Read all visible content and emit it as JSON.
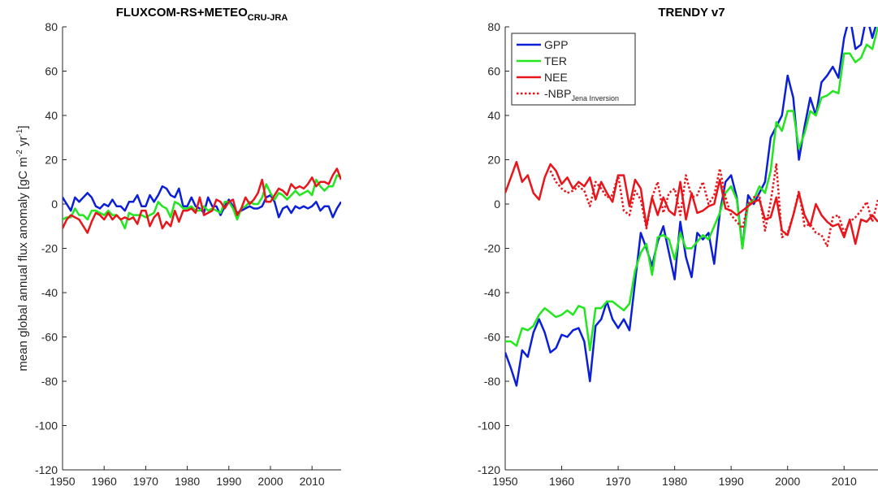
{
  "chart_data": [
    {
      "type": "line",
      "title": "FLUXCOM-RS+METEO",
      "title_subscript": "CRU-JRA",
      "y_label": [
        "mean global annual flux anomaly [gC m",
        "-2",
        " yr",
        "-1",
        "]"
      ],
      "x": [
        1950,
        1951,
        1952,
        1953,
        1954,
        1955,
        1956,
        1957,
        1958,
        1959,
        1960,
        1961,
        1962,
        1963,
        1964,
        1965,
        1966,
        1967,
        1968,
        1969,
        1970,
        1971,
        1972,
        1973,
        1974,
        1975,
        1976,
        1977,
        1978,
        1979,
        1980,
        1981,
        1982,
        1983,
        1984,
        1985,
        1986,
        1987,
        1988,
        1989,
        1990,
        1991,
        1992,
        1993,
        1994,
        1995,
        1996,
        1997,
        1998,
        1999,
        2000,
        2001,
        2002,
        2003,
        2004,
        2005,
        2006,
        2007,
        2008,
        2009,
        2010,
        2011,
        2012,
        2013,
        2014,
        2015,
        2016,
        2017
      ],
      "series": [
        {
          "name": "GPP",
          "color": "#0b1fd8",
          "values": [
            3,
            0,
            -3,
            3,
            1,
            3,
            5,
            3,
            -1,
            -2,
            0,
            -1,
            2,
            -1,
            -1,
            -3,
            1,
            1,
            4,
            -1,
            -1,
            4,
            1,
            4,
            8,
            7,
            4,
            3,
            7,
            -1,
            -1,
            3,
            -1,
            -2,
            -4,
            3,
            -1,
            -1,
            -5,
            -1,
            2,
            -1,
            -4,
            -3,
            -2,
            -1,
            -2,
            -2,
            -1,
            3,
            4,
            1,
            -6,
            -2,
            -1,
            -4,
            -1,
            -2,
            -1,
            -2,
            -1,
            1,
            -3,
            -1,
            -1,
            -6,
            -2,
            1
          ]
        },
        {
          "name": "TER",
          "color": "#22e61e",
          "values": [
            -7,
            -6,
            -6,
            -2,
            -5,
            -5,
            -7,
            -3,
            -3,
            -4,
            -5,
            -3,
            -5,
            -5,
            -7,
            -11,
            -4,
            -5,
            -5,
            -5,
            -6,
            -5,
            -4,
            1,
            -1,
            -2,
            -6,
            1,
            0,
            -2,
            -2,
            -1,
            -3,
            -3,
            -1,
            -3,
            -2,
            -3,
            -4,
            1,
            1,
            -2,
            -7,
            -2,
            -1,
            1,
            0,
            0,
            3,
            9,
            5,
            2,
            5,
            4,
            2,
            4,
            6,
            4,
            5,
            6,
            4,
            11,
            8,
            6,
            8,
            8,
            13,
            12
          ]
        },
        {
          "name": "NEE",
          "color": "#e8151b",
          "values": [
            -11,
            -7,
            -5,
            -6,
            -7,
            -10,
            -13,
            -8,
            -4,
            -5,
            -7,
            -4,
            -7,
            -5,
            -7,
            -6,
            -7,
            -6,
            -9,
            -3,
            -3,
            -10,
            -6,
            -4,
            -11,
            -8,
            -10,
            -3,
            -8,
            -3,
            -3,
            -2,
            -4,
            3,
            -5,
            -4,
            -3,
            2,
            1,
            -2,
            1,
            2,
            -5,
            -2,
            3,
            0,
            2,
            5,
            11,
            1,
            1,
            4,
            7,
            6,
            4,
            9,
            7,
            8,
            7,
            9,
            12,
            8,
            10,
            10,
            9,
            13,
            16,
            11
          ]
        }
      ],
      "xlim": [
        1950,
        2017
      ],
      "xticks": [
        1950,
        1960,
        1970,
        1980,
        1990,
        2000,
        2010
      ],
      "ylim": [
        -120,
        80
      ],
      "yticks": [
        -120,
        -100,
        -80,
        -60,
        -40,
        -20,
        0,
        20,
        40,
        60,
        80
      ]
    },
    {
      "type": "line",
      "title": "TRENDY v7",
      "x": [
        1950,
        1951,
        1952,
        1953,
        1954,
        1955,
        1956,
        1957,
        1958,
        1959,
        1960,
        1961,
        1962,
        1963,
        1964,
        1965,
        1966,
        1967,
        1968,
        1969,
        1970,
        1971,
        1972,
        1973,
        1974,
        1975,
        1976,
        1977,
        1978,
        1979,
        1980,
        1981,
        1982,
        1983,
        1984,
        1985,
        1986,
        1987,
        1988,
        1989,
        1990,
        1991,
        1992,
        1993,
        1994,
        1995,
        1996,
        1997,
        1998,
        1999,
        2000,
        2001,
        2002,
        2003,
        2004,
        2005,
        2006,
        2007,
        2008,
        2009,
        2010,
        2011,
        2012,
        2013,
        2014,
        2015,
        2016
      ],
      "series": [
        {
          "name": "GPP",
          "color": "#0b1fd8",
          "values": [
            -67,
            -74,
            -82,
            -66,
            -69,
            -58,
            -52,
            -58,
            -67,
            -65,
            -59,
            -60,
            -57,
            -56,
            -62,
            -80,
            -55,
            -52,
            -44,
            -52,
            -56,
            -52,
            -57,
            -35,
            -13,
            -20,
            -28,
            -17,
            -10,
            -22,
            -34,
            -8,
            -24,
            -33,
            -13,
            -16,
            -13,
            -27,
            -4,
            10,
            13,
            3,
            -20,
            4,
            0,
            5,
            10,
            30,
            35,
            40,
            58,
            48,
            20,
            35,
            48,
            40,
            55,
            58,
            62,
            57,
            75,
            85,
            70,
            72,
            85,
            75,
            84
          ]
        },
        {
          "name": "TER",
          "color": "#22e61e",
          "values": [
            -62,
            -62,
            -64,
            -56,
            -57,
            -55,
            -50,
            -47,
            -49,
            -51,
            -50,
            -48,
            -50,
            -46,
            -47,
            -66,
            -47,
            -47,
            -44,
            -44,
            -46,
            -48,
            -45,
            -30,
            -22,
            -18,
            -32,
            -15,
            -14,
            -16,
            -25,
            -13,
            -20,
            -20,
            -17,
            -14,
            -16,
            -10,
            -4,
            5,
            8,
            2,
            -20,
            0,
            2,
            8,
            5,
            15,
            37,
            33,
            42,
            42,
            25,
            32,
            42,
            40,
            48,
            49,
            51,
            50,
            68,
            68,
            64,
            66,
            72,
            70,
            80
          ]
        },
        {
          "name": "NEE",
          "color": "#e8151b",
          "values": [
            5,
            12,
            19,
            10,
            13,
            5,
            2,
            12,
            18,
            15,
            9,
            12,
            7,
            10,
            8,
            12,
            2,
            10,
            5,
            1,
            13,
            13,
            -1,
            11,
            7,
            -10,
            3,
            -5,
            3,
            -3,
            -5,
            10,
            -7,
            5,
            -4,
            -3,
            -1,
            0,
            11,
            -2,
            -3,
            -5,
            -3,
            -1,
            1,
            2,
            -7,
            -6,
            3,
            -12,
            -14,
            -5,
            5,
            -5,
            -10,
            0,
            -5,
            -8,
            -10,
            -9,
            -15,
            -7,
            -18,
            -7,
            -8,
            -5,
            -8
          ]
        },
        {
          "name": "-NBP",
          "name_subscript": "Jena Inversion",
          "color": "#e8151b",
          "dash": "dotted",
          "values": [
            null,
            null,
            null,
            null,
            null,
            null,
            null,
            null,
            15,
            10,
            7,
            5,
            6,
            8,
            6,
            -1,
            10,
            7,
            3,
            4,
            13,
            -3,
            -5,
            6,
            2,
            -11,
            3,
            10,
            -4,
            5,
            7,
            -5,
            13,
            3,
            4,
            10,
            0,
            4,
            16,
            3,
            -5,
            -8,
            -11,
            0,
            3,
            4,
            -12,
            1,
            18,
            -15,
            -13,
            -5,
            6,
            -10,
            -9,
            -13,
            -14,
            -19,
            -6,
            -5,
            -13,
            -8,
            -6,
            -3,
            1,
            -8,
            2
          ]
        }
      ],
      "xlim": [
        1950,
        2016
      ],
      "xticks": [
        1950,
        1960,
        1970,
        1980,
        1990,
        2000,
        2010
      ],
      "ylim": [
        -120,
        80
      ],
      "yticks": [
        -120,
        -100,
        -80,
        -60,
        -40,
        -20,
        0,
        20,
        40,
        60,
        80
      ],
      "legend": "upper left"
    }
  ]
}
